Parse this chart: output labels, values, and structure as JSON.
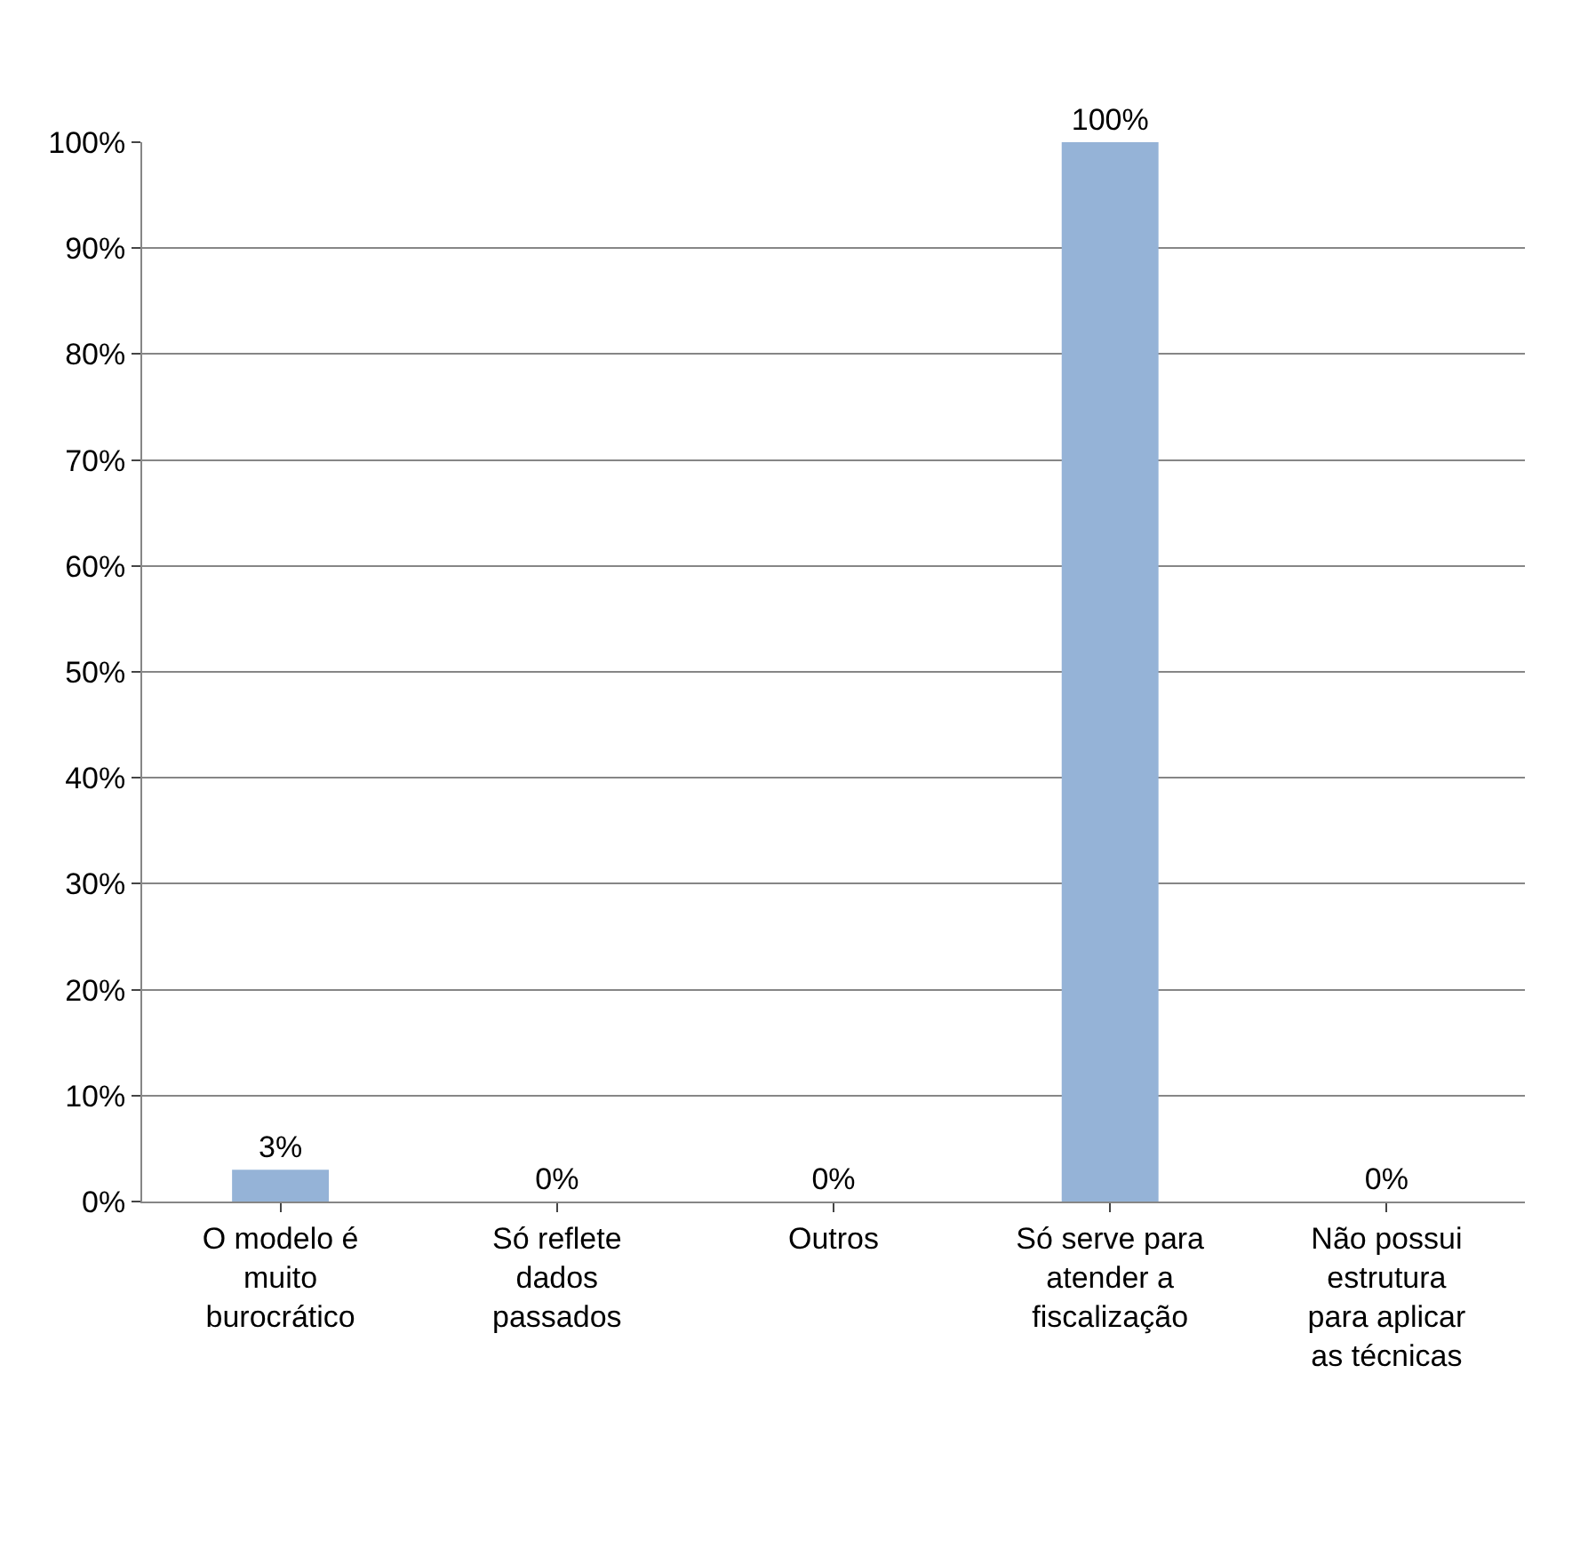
{
  "chart_data": {
    "type": "bar",
    "categories": [
      "O modelo é muito burocrático",
      "Só reflete dados passados",
      "Outros",
      "Só serve para atender a fiscalização",
      "Não possui estrutura para aplicar as técnicas"
    ],
    "values": [
      3,
      0,
      0,
      100,
      0
    ],
    "value_labels": [
      "3%",
      "0%",
      "0%",
      "100%",
      "0%"
    ],
    "color": "#95b3d7",
    "ylim": [
      0,
      100
    ],
    "yticks": [
      {
        "value": 0,
        "label": "0%"
      },
      {
        "value": 10,
        "label": "10%"
      },
      {
        "value": 20,
        "label": "20%"
      },
      {
        "value": 30,
        "label": "30%"
      },
      {
        "value": 40,
        "label": "40%"
      },
      {
        "value": 50,
        "label": "50%"
      },
      {
        "value": 60,
        "label": "60%"
      },
      {
        "value": 70,
        "label": "70%"
      },
      {
        "value": 80,
        "label": "80%"
      },
      {
        "value": 90,
        "label": "90%"
      },
      {
        "value": 100,
        "label": "100%"
      }
    ],
    "grid": "y"
  }
}
